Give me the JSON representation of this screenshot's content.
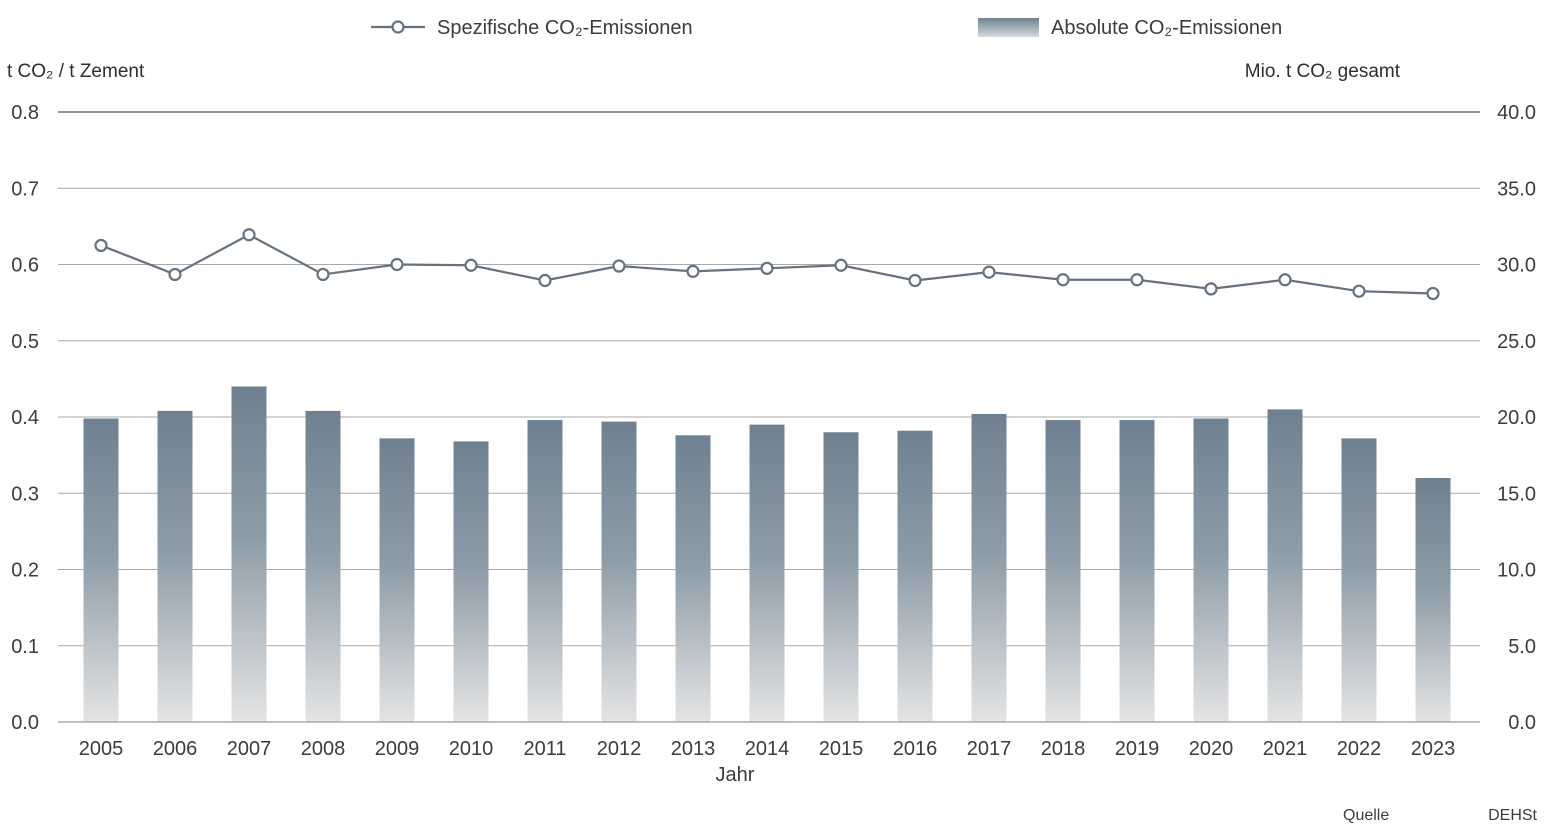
{
  "chart_data": {
    "type": "bar+line",
    "categories": [
      "2005",
      "2006",
      "2007",
      "2008",
      "2009",
      "2010",
      "2011",
      "2012",
      "2013",
      "2014",
      "2015",
      "2016",
      "2017",
      "2018",
      "2019",
      "2020",
      "2021",
      "2022",
      "2023"
    ],
    "series": [
      {
        "name": "Spezifische CO₂-Emissionen",
        "type": "line",
        "axis": "left",
        "values": [
          0.625,
          0.587,
          0.639,
          0.587,
          0.6,
          0.599,
          0.579,
          0.598,
          0.591,
          0.595,
          0.599,
          0.579,
          0.59,
          0.58,
          0.58,
          0.568,
          0.58,
          0.565,
          0.562
        ]
      },
      {
        "name": "Absolute CO₂-Emissionen",
        "type": "bar",
        "axis": "right",
        "values": [
          19.9,
          20.4,
          22.0,
          20.4,
          18.6,
          18.4,
          19.8,
          19.7,
          18.8,
          19.5,
          19.0,
          19.1,
          20.2,
          19.8,
          19.8,
          19.9,
          20.5,
          18.6,
          16.0
        ]
      }
    ],
    "xlabel": "Jahr",
    "ylabel_left": "t CO₂ / t Zement",
    "ylabel_right": "Mio. t CO₂ gesamt",
    "ylim_left": [
      0,
      0.8
    ],
    "ylim_right": [
      0,
      40
    ],
    "yticks_left": [
      "0.0",
      "0.1",
      "0.2",
      "0.3",
      "0.4",
      "0.5",
      "0.6",
      "0.7",
      "0.8"
    ],
    "yticks_right": [
      "0.0",
      "5.0",
      "10.0",
      "15.0",
      "20.0",
      "25.0",
      "30.0",
      "35.0",
      "40.0"
    ],
    "grid": true,
    "legend_position": "top-center",
    "source_label": "Quelle",
    "source_value": "DEHSt",
    "colors": {
      "line": "#66727d",
      "bar_top": "#6f8190",
      "bar_bottom": "#e4e4e4",
      "grid": "#a9a9a9",
      "text": "#3c3c3c"
    }
  }
}
